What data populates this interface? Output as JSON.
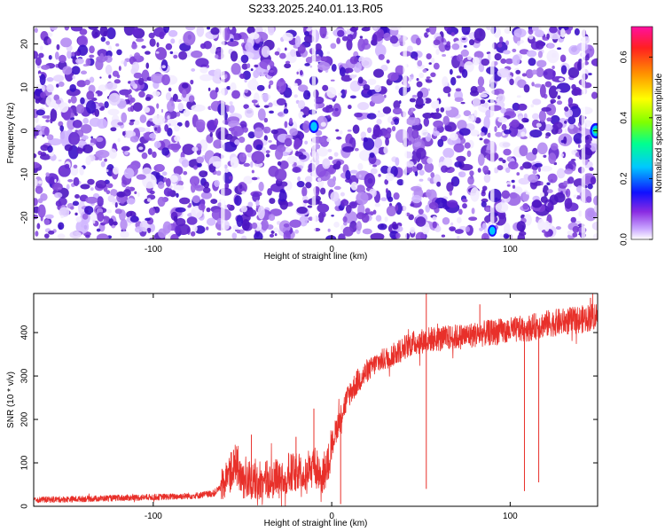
{
  "title": "S233.2025.240.01.13.R05",
  "colors": {
    "snr_line": "#e8302a",
    "spectrogram_bg": "#ffffff"
  },
  "chart_data": [
    {
      "type": "heatmap",
      "title": "S233.2025.240.01.13.R05",
      "xlabel": "Height of straight line (km)",
      "ylabel": "Frequency (Hz)",
      "xlim": [
        -167,
        149
      ],
      "ylim": [
        -25,
        24
      ],
      "xticks": [
        -100,
        0,
        100
      ],
      "xtick_labels": [
        "-100",
        "0",
        "100"
      ],
      "yticks": [
        -20,
        -10,
        0,
        10,
        20
      ],
      "ytick_labels": [
        "-20",
        "-10",
        "0",
        "10",
        "20"
      ],
      "colorbar": {
        "label": "Normalized spectral amplitude",
        "range": [
          0,
          0.7
        ],
        "ticks": [
          0,
          0.2,
          0.4,
          0.6
        ],
        "tick_labels": [
          "0.0",
          "0.2",
          "0.4",
          "0.6"
        ],
        "colormap": "rainbow (white-violet-blue-cyan-green-yellow-orange-red-magenta)"
      },
      "background_noise_level": 0.08,
      "notable_peaks": [
        {
          "x": -10,
          "y": 1,
          "amplitude": 0.28
        },
        {
          "x": 90,
          "y": -23,
          "amplitude": 0.25
        },
        {
          "x": 148,
          "y": 0,
          "amplitude": 0.33
        }
      ],
      "light_vertical_stripes_x": [
        -61,
        -10,
        41,
        90,
        141
      ]
    },
    {
      "type": "line",
      "xlabel": "Height of straight line (km)",
      "ylabel": "SNR (10 * v/v)",
      "xlim": [
        -167,
        149
      ],
      "ylim": [
        0,
        490
      ],
      "xticks": [
        -100,
        0,
        100
      ],
      "xtick_labels": [
        "-100",
        "0",
        "100"
      ],
      "yticks": [
        0,
        100,
        200,
        300,
        400
      ],
      "ytick_labels": [
        "0",
        "100",
        "200",
        "300",
        "400"
      ],
      "series": [
        {
          "name": "SNR",
          "x": [
            -167,
            -150,
            -130,
            -110,
            -90,
            -75,
            -66,
            -62,
            -58,
            -54,
            -50,
            -46,
            -42,
            -38,
            -34,
            -30,
            -26,
            -22,
            -18,
            -14,
            -10,
            -6,
            -2,
            2,
            6,
            10,
            15,
            20,
            25,
            30,
            35,
            40,
            45,
            50,
            55,
            60,
            70,
            80,
            90,
            100,
            110,
            120,
            130,
            140,
            149
          ],
          "values": [
            15,
            16,
            18,
            20,
            22,
            25,
            30,
            45,
            75,
            90,
            70,
            60,
            50,
            55,
            60,
            70,
            55,
            85,
            75,
            80,
            95,
            60,
            110,
            170,
            220,
            260,
            290,
            310,
            330,
            340,
            350,
            365,
            375,
            380,
            385,
            385,
            390,
            395,
            400,
            405,
            410,
            420,
            425,
            430,
            440
          ],
          "notable_spikes": [
            {
              "x": -55,
              "value": 130
            },
            {
              "x": -45,
              "value": 165
            },
            {
              "x": -20,
              "value": 160
            },
            {
              "x": -10,
              "value": 225
            },
            {
              "x": 53,
              "value": 490
            },
            {
              "x": 83,
              "value": 465
            },
            {
              "x": 145,
              "value": 480
            }
          ],
          "notable_dips": [
            {
              "x": 5,
              "value": 5
            },
            {
              "x": 53,
              "value": 40
            },
            {
              "x": 108,
              "value": 35
            },
            {
              "x": 116,
              "value": 55
            }
          ]
        }
      ]
    }
  ]
}
